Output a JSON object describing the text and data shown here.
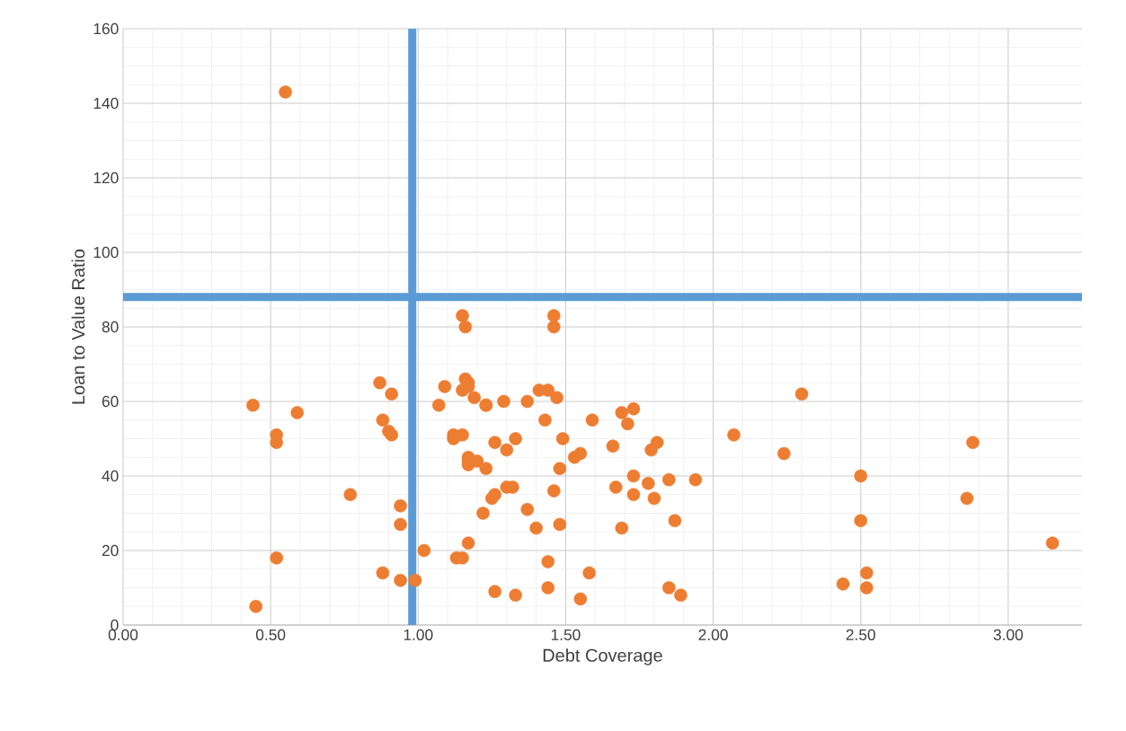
{
  "chart_data": {
    "type": "scatter",
    "xlabel": "Debt Coverage",
    "ylabel": "Loan to Value Ratio",
    "xlim": [
      0,
      3.25
    ],
    "ylim": [
      0,
      160
    ],
    "xticks": [
      {
        "value": 0,
        "label": "0.00"
      },
      {
        "value": 0.5,
        "label": "0.50"
      },
      {
        "value": 1,
        "label": "1.00"
      },
      {
        "value": 1.5,
        "label": "1.50"
      },
      {
        "value": 2,
        "label": "2.00"
      },
      {
        "value": 2.5,
        "label": "2.50"
      },
      {
        "value": 3,
        "label": "3.00"
      }
    ],
    "yticks": [
      0,
      20,
      40,
      60,
      80,
      100,
      120,
      140,
      160
    ],
    "grid": true,
    "marker": "circle",
    "ref_lines": [
      {
        "axis": "x",
        "value": 0.98,
        "color": "#5b9bd5"
      },
      {
        "axis": "y",
        "value": 88,
        "color": "#5b9bd5"
      }
    ],
    "series": [
      {
        "color": "#ed7d31",
        "x": [
          0.55,
          0.44,
          0.45,
          0.52,
          0.52,
          0.52,
          0.59,
          0.77,
          0.87,
          0.88,
          0.9,
          0.91,
          0.91,
          0.94,
          0.94,
          0.88,
          0.94,
          0.99,
          1.02,
          1.07,
          1.09,
          1.12,
          1.12,
          1.15,
          1.15,
          1.16,
          1.16,
          1.17,
          1.15,
          1.17,
          1.19,
          1.23,
          1.23,
          1.17,
          1.17,
          1.17,
          1.2,
          1.23,
          1.22,
          1.17,
          1.13,
          1.15,
          1.26,
          1.29,
          1.3,
          1.33,
          1.32,
          1.3,
          1.26,
          1.25,
          1.26,
          1.33,
          1.37,
          1.41,
          1.44,
          1.47,
          1.43,
          1.49,
          1.48,
          1.46,
          1.48,
          1.37,
          1.4,
          1.44,
          1.44,
          1.46,
          1.46,
          1.53,
          1.55,
          1.55,
          1.58,
          1.59,
          1.66,
          1.67,
          1.69,
          1.71,
          1.73,
          1.69,
          1.73,
          1.73,
          1.78,
          1.81,
          1.79,
          1.8,
          1.85,
          1.87,
          1.85,
          1.89,
          1.94,
          2.07,
          2.24,
          2.3,
          2.44,
          2.5,
          2.5,
          2.52,
          2.52,
          2.86,
          2.88,
          3.15
        ],
        "values": [
          143,
          59,
          5,
          51,
          49,
          18,
          57,
          35,
          65,
          55,
          52,
          51,
          62,
          32,
          27,
          14,
          12,
          12,
          20,
          59,
          64,
          51,
          50,
          51,
          83,
          80,
          66,
          65,
          63,
          64,
          61,
          59,
          59,
          45,
          44,
          43,
          44,
          42,
          30,
          22,
          18,
          18,
          49,
          60,
          47,
          50,
          37,
          37,
          35,
          34,
          9,
          8,
          60,
          63,
          63,
          61,
          55,
          50,
          42,
          36,
          27,
          31,
          26,
          17,
          10,
          83,
          80,
          45,
          46,
          7,
          14,
          55,
          48,
          37,
          57,
          54,
          58,
          26,
          40,
          35,
          38,
          49,
          47,
          34,
          39,
          28,
          10,
          8,
          39,
          51,
          46,
          62,
          11,
          40,
          28,
          14,
          10,
          34,
          49,
          22
        ]
      }
    ]
  }
}
